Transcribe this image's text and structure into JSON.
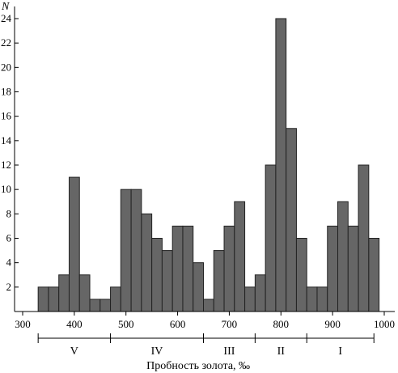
{
  "chart_data": {
    "type": "bar",
    "ylabel": "N",
    "xlabel": "Пробность золота, ‰",
    "xlim": [
      300,
      1000
    ],
    "ylim": [
      0,
      26
    ],
    "x_ticks": [
      300,
      400,
      500,
      600,
      700,
      800,
      900,
      1000
    ],
    "y_ticks": [
      2,
      4,
      6,
      8,
      10,
      12,
      14,
      16,
      18,
      20,
      22,
      24
    ],
    "bin_width": 20,
    "bars": [
      {
        "start": 330,
        "end": 350,
        "value": 2
      },
      {
        "start": 350,
        "end": 370,
        "value": 2
      },
      {
        "start": 370,
        "end": 390,
        "value": 3
      },
      {
        "start": 390,
        "end": 410,
        "value": 11
      },
      {
        "start": 410,
        "end": 430,
        "value": 3
      },
      {
        "start": 430,
        "end": 450,
        "value": 1
      },
      {
        "start": 450,
        "end": 470,
        "value": 1
      },
      {
        "start": 470,
        "end": 490,
        "value": 2
      },
      {
        "start": 490,
        "end": 510,
        "value": 10
      },
      {
        "start": 510,
        "end": 530,
        "value": 10
      },
      {
        "start": 530,
        "end": 550,
        "value": 8
      },
      {
        "start": 550,
        "end": 570,
        "value": 6
      },
      {
        "start": 570,
        "end": 590,
        "value": 5
      },
      {
        "start": 590,
        "end": 610,
        "value": 7
      },
      {
        "start": 610,
        "end": 630,
        "value": 7
      },
      {
        "start": 630,
        "end": 650,
        "value": 4
      },
      {
        "start": 650,
        "end": 670,
        "value": 1
      },
      {
        "start": 670,
        "end": 690,
        "value": 5
      },
      {
        "start": 690,
        "end": 710,
        "value": 7
      },
      {
        "start": 710,
        "end": 730,
        "value": 9
      },
      {
        "start": 730,
        "end": 750,
        "value": 2
      },
      {
        "start": 750,
        "end": 770,
        "value": 3
      },
      {
        "start": 770,
        "end": 790,
        "value": 12
      },
      {
        "start": 790,
        "end": 810,
        "value": 24
      },
      {
        "start": 810,
        "end": 830,
        "value": 15
      },
      {
        "start": 830,
        "end": 850,
        "value": 6
      },
      {
        "start": 850,
        "end": 870,
        "value": 2
      },
      {
        "start": 870,
        "end": 890,
        "value": 2
      },
      {
        "start": 890,
        "end": 910,
        "value": 7
      },
      {
        "start": 910,
        "end": 930,
        "value": 9
      },
      {
        "start": 930,
        "end": 950,
        "value": 7
      },
      {
        "start": 950,
        "end": 970,
        "value": 12
      },
      {
        "start": 970,
        "end": 990,
        "value": 6
      }
    ],
    "groups": {
      "boundaries": [
        330,
        470,
        650,
        750,
        850,
        980
      ],
      "labels": [
        "V",
        "IV",
        "III",
        "II",
        "I"
      ]
    }
  }
}
